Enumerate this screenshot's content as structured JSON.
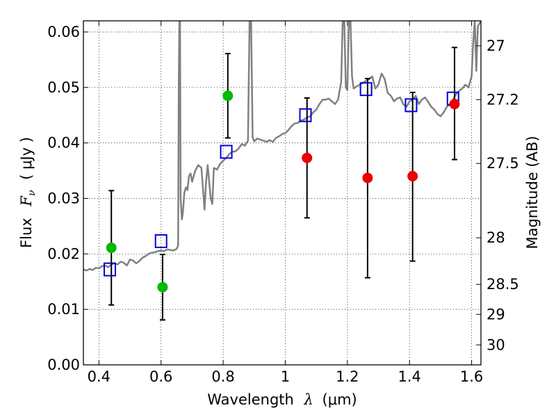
{
  "chart_data": {
    "type": "scatter",
    "xlabel_text": "Wavelength",
    "xlabel_symbol": "λ",
    "xlabel_unit": "(μm)",
    "ylabel_text": "Flux",
    "ylabel_symbol": "F",
    "ylabel_subscript": "ν",
    "ylabel_unit": "( μJy )",
    "y2label": "Magnitude (AB)",
    "xlim": [
      0.35,
      1.63
    ],
    "ylim": [
      0.0,
      0.062
    ],
    "grid": true,
    "x_ticks": [
      {
        "value": 0.4,
        "label": "0.4"
      },
      {
        "value": 0.6,
        "label": "0.6"
      },
      {
        "value": 0.8,
        "label": "0.8"
      },
      {
        "value": 1.0,
        "label": "1"
      },
      {
        "value": 1.2,
        "label": "1.2"
      },
      {
        "value": 1.4,
        "label": "1.4"
      },
      {
        "value": 1.6,
        "label": "1.6"
      }
    ],
    "y_ticks": [
      {
        "value": 0.0,
        "label": "0.00"
      },
      {
        "value": 0.01,
        "label": "0.01"
      },
      {
        "value": 0.02,
        "label": "0.02"
      },
      {
        "value": 0.03,
        "label": "0.03"
      },
      {
        "value": 0.04,
        "label": "0.04"
      },
      {
        "value": 0.05,
        "label": "0.05"
      },
      {
        "value": 0.06,
        "label": "0.06"
      }
    ],
    "y2_ticks": [
      {
        "flux": 0.0575,
        "label": "27"
      },
      {
        "flux": 0.0478,
        "label": "27.2"
      },
      {
        "flux": 0.0363,
        "label": "27.5"
      },
      {
        "flux": 0.0229,
        "label": "28"
      },
      {
        "flux": 0.0145,
        "label": "28.5"
      },
      {
        "flux": 0.0091,
        "label": "29"
      },
      {
        "flux": 0.0036,
        "label": "30"
      }
    ],
    "series": [
      {
        "kind": "line",
        "color": "#808080",
        "values": [
          [
            0.35,
            0.0172
          ],
          [
            0.36,
            0.017
          ],
          [
            0.37,
            0.0173
          ],
          [
            0.38,
            0.0171
          ],
          [
            0.39,
            0.0175
          ],
          [
            0.4,
            0.0174
          ],
          [
            0.41,
            0.0178
          ],
          [
            0.42,
            0.0179
          ],
          [
            0.43,
            0.0176
          ],
          [
            0.44,
            0.0181
          ],
          [
            0.45,
            0.0183
          ],
          [
            0.46,
            0.0181
          ],
          [
            0.47,
            0.0186
          ],
          [
            0.48,
            0.0184
          ],
          [
            0.49,
            0.0179
          ],
          [
            0.5,
            0.019
          ],
          [
            0.51,
            0.0188
          ],
          [
            0.52,
            0.0183
          ],
          [
            0.53,
            0.0187
          ],
          [
            0.54,
            0.0193
          ],
          [
            0.55,
            0.0196
          ],
          [
            0.56,
            0.02
          ],
          [
            0.57,
            0.0202
          ],
          [
            0.58,
            0.0203
          ],
          [
            0.59,
            0.0205
          ],
          [
            0.6,
            0.0206
          ],
          [
            0.61,
            0.0205
          ],
          [
            0.62,
            0.0208
          ],
          [
            0.63,
            0.0207
          ],
          [
            0.64,
            0.0206
          ],
          [
            0.65,
            0.0209
          ],
          [
            0.655,
            0.0215
          ],
          [
            0.657,
            0.05
          ],
          [
            0.659,
            0.062
          ],
          [
            0.661,
            0.062
          ],
          [
            0.663,
            0.03
          ],
          [
            0.667,
            0.0262
          ],
          [
            0.67,
            0.0272
          ],
          [
            0.675,
            0.031
          ],
          [
            0.68,
            0.032
          ],
          [
            0.685,
            0.0315
          ],
          [
            0.69,
            0.034
          ],
          [
            0.695,
            0.0345
          ],
          [
            0.7,
            0.033
          ],
          [
            0.71,
            0.035
          ],
          [
            0.72,
            0.036
          ],
          [
            0.73,
            0.0355
          ],
          [
            0.74,
            0.028
          ],
          [
            0.745,
            0.033
          ],
          [
            0.75,
            0.036
          ],
          [
            0.76,
            0.03
          ],
          [
            0.765,
            0.029
          ],
          [
            0.77,
            0.0355
          ],
          [
            0.78,
            0.0352
          ],
          [
            0.79,
            0.0362
          ],
          [
            0.8,
            0.0368
          ],
          [
            0.81,
            0.0373
          ],
          [
            0.82,
            0.038
          ],
          [
            0.83,
            0.0384
          ],
          [
            0.84,
            0.0385
          ],
          [
            0.85,
            0.039
          ],
          [
            0.86,
            0.0398
          ],
          [
            0.87,
            0.0395
          ],
          [
            0.88,
            0.0404
          ],
          [
            0.885,
            0.062
          ],
          [
            0.89,
            0.062
          ],
          [
            0.895,
            0.041
          ],
          [
            0.9,
            0.0403
          ],
          [
            0.91,
            0.0408
          ],
          [
            0.92,
            0.0406
          ],
          [
            0.93,
            0.0404
          ],
          [
            0.94,
            0.0402
          ],
          [
            0.95,
            0.0405
          ],
          [
            0.96,
            0.0402
          ],
          [
            0.97,
            0.0409
          ],
          [
            0.98,
            0.0412
          ],
          [
            0.99,
            0.0416
          ],
          [
            1.0,
            0.0418
          ],
          [
            1.01,
            0.0423
          ],
          [
            1.02,
            0.043
          ],
          [
            1.03,
            0.0435
          ],
          [
            1.04,
            0.0436
          ],
          [
            1.05,
            0.044
          ],
          [
            1.06,
            0.0442
          ],
          [
            1.07,
            0.0446
          ],
          [
            1.08,
            0.0448
          ],
          [
            1.09,
            0.0455
          ],
          [
            1.1,
            0.046
          ],
          [
            1.11,
            0.047
          ],
          [
            1.12,
            0.0478
          ],
          [
            1.13,
            0.0478
          ],
          [
            1.14,
            0.048
          ],
          [
            1.15,
            0.0475
          ],
          [
            1.16,
            0.047
          ],
          [
            1.17,
            0.0478
          ],
          [
            1.18,
            0.051
          ],
          [
            1.185,
            0.062
          ],
          [
            1.19,
            0.062
          ],
          [
            1.195,
            0.05
          ],
          [
            1.2,
            0.0495
          ],
          [
            1.205,
            0.062
          ],
          [
            1.21,
            0.062
          ],
          [
            1.215,
            0.052
          ],
          [
            1.22,
            0.0498
          ],
          [
            1.23,
            0.0502
          ],
          [
            1.24,
            0.0505
          ],
          [
            1.25,
            0.0508
          ],
          [
            1.26,
            0.0512
          ],
          [
            1.27,
            0.0515
          ],
          [
            1.28,
            0.052
          ],
          [
            1.29,
            0.0498
          ],
          [
            1.3,
            0.0505
          ],
          [
            1.31,
            0.0525
          ],
          [
            1.32,
            0.0515
          ],
          [
            1.33,
            0.049
          ],
          [
            1.34,
            0.0485
          ],
          [
            1.35,
            0.0475
          ],
          [
            1.36,
            0.048
          ],
          [
            1.37,
            0.0482
          ],
          [
            1.38,
            0.047
          ],
          [
            1.39,
            0.0465
          ],
          [
            1.4,
            0.0475
          ],
          [
            1.41,
            0.0478
          ],
          [
            1.42,
            0.0485
          ],
          [
            1.43,
            0.047
          ],
          [
            1.44,
            0.0478
          ],
          [
            1.45,
            0.0482
          ],
          [
            1.46,
            0.0474
          ],
          [
            1.47,
            0.0465
          ],
          [
            1.48,
            0.046
          ],
          [
            1.49,
            0.0452
          ],
          [
            1.5,
            0.0448
          ],
          [
            1.51,
            0.0455
          ],
          [
            1.52,
            0.0465
          ],
          [
            1.53,
            0.047
          ],
          [
            1.54,
            0.0478
          ],
          [
            1.55,
            0.0488
          ],
          [
            1.56,
            0.0494
          ],
          [
            1.57,
            0.0498
          ],
          [
            1.58,
            0.0505
          ],
          [
            1.59,
            0.05
          ],
          [
            1.6,
            0.052
          ],
          [
            1.605,
            0.058
          ],
          [
            1.61,
            0.062
          ],
          [
            1.615,
            0.053
          ],
          [
            1.62,
            0.061
          ],
          [
            1.63,
            0.062
          ]
        ]
      },
      {
        "kind": "errorbar",
        "color": "#000000",
        "values": [
          {
            "x": 0.44,
            "low": 0.0108,
            "high": 0.0314
          },
          {
            "x": 0.605,
            "low": 0.0081,
            "high": 0.0199
          },
          {
            "x": 0.815,
            "low": 0.0409,
            "high": 0.0561
          },
          {
            "x": 1.07,
            "low": 0.0265,
            "high": 0.0481
          },
          {
            "x": 1.265,
            "low": 0.0157,
            "high": 0.0516
          },
          {
            "x": 1.41,
            "low": 0.0187,
            "high": 0.0491
          },
          {
            "x": 1.545,
            "low": 0.037,
            "high": 0.0572
          }
        ]
      },
      {
        "kind": "square",
        "color": "#0000dd",
        "values": [
          [
            0.435,
            0.0172
          ],
          [
            0.6,
            0.0223
          ],
          [
            0.81,
            0.0384
          ],
          [
            1.065,
            0.045
          ],
          [
            1.26,
            0.0497
          ],
          [
            1.405,
            0.0468
          ],
          [
            1.54,
            0.048
          ]
        ]
      },
      {
        "kind": "circle",
        "color": "#00bb00",
        "values": [
          [
            0.44,
            0.0211
          ],
          [
            0.605,
            0.014
          ],
          [
            0.815,
            0.0485
          ]
        ]
      },
      {
        "kind": "circle",
        "color": "#ee0000",
        "values": [
          [
            1.07,
            0.0373
          ],
          [
            1.265,
            0.0337
          ],
          [
            1.41,
            0.034
          ],
          [
            1.545,
            0.047
          ]
        ]
      }
    ]
  }
}
